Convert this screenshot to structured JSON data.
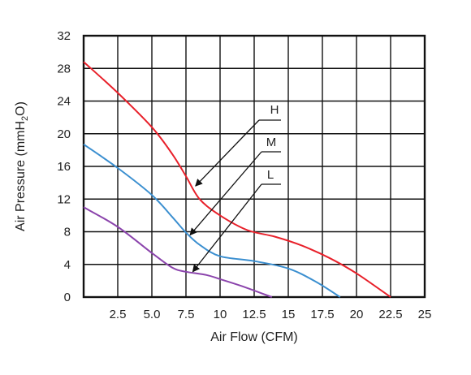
{
  "chart_data": {
    "type": "line",
    "title": "",
    "xlabel": "Air Flow (CFM)",
    "ylabel": "Air Pressure (mmH2O)",
    "ylabel_parts": {
      "before": "Air Pressure (mmH",
      "sub": "2",
      "after": "O)"
    },
    "xlim": [
      0,
      25
    ],
    "ylim": [
      0,
      32
    ],
    "x_ticks": [
      {
        "value": 2.5,
        "label": "2.5"
      },
      {
        "value": 5,
        "label": "5.0"
      },
      {
        "value": 7.5,
        "label": "7.5"
      },
      {
        "value": 10,
        "label": "10"
      },
      {
        "value": 12.5,
        "label": "12.5"
      },
      {
        "value": 15,
        "label": "15"
      },
      {
        "value": 17.5,
        "label": "17.5"
      },
      {
        "value": 20,
        "label": "20"
      },
      {
        "value": 22.5,
        "label": "22.5"
      },
      {
        "value": 25,
        "label": "25"
      }
    ],
    "y_ticks": [
      {
        "value": 0,
        "label": "0"
      },
      {
        "value": 4,
        "label": "4"
      },
      {
        "value": 8,
        "label": "8"
      },
      {
        "value": 12,
        "label": "12"
      },
      {
        "value": 16,
        "label": "16"
      },
      {
        "value": 20,
        "label": "20"
      },
      {
        "value": 24,
        "label": "24"
      },
      {
        "value": 28,
        "label": "28"
      },
      {
        "value": 32,
        "label": "32"
      }
    ],
    "grid": true,
    "series": [
      {
        "name": "H",
        "color": "#e8202a",
        "x": [
          0,
          2.5,
          5,
          6.5,
          7.5,
          8.5,
          10,
          12,
          14,
          16,
          18,
          20,
          22.5
        ],
        "y": [
          28.8,
          25,
          20.8,
          17.5,
          14.8,
          12,
          10,
          8.2,
          7.4,
          6.3,
          4.8,
          2.9,
          0
        ]
      },
      {
        "name": "M",
        "color": "#3b8fd0",
        "x": [
          0,
          2.5,
          5,
          6.5,
          7.5,
          8.5,
          10,
          12.5,
          15,
          17,
          18.8
        ],
        "y": [
          18.7,
          15.8,
          12.5,
          9.8,
          7.9,
          6.4,
          5.0,
          4.4,
          3.5,
          1.9,
          0
        ]
      },
      {
        "name": "L",
        "color": "#8b44ac",
        "x": [
          0,
          2.5,
          5,
          6.5,
          7.5,
          9,
          10,
          11.5,
          12.5,
          13.8
        ],
        "y": [
          11.0,
          8.6,
          5.4,
          3.6,
          3.1,
          2.7,
          2.2,
          1.4,
          0.8,
          0
        ]
      }
    ],
    "annotations": [
      {
        "label": "H",
        "series": "H",
        "point": [
          8.2,
          13.6
        ]
      },
      {
        "label": "M",
        "series": "M",
        "point": [
          7.8,
          7.6
        ]
      },
      {
        "label": "L",
        "series": "L",
        "point": [
          8.0,
          3.1
        ]
      }
    ]
  }
}
